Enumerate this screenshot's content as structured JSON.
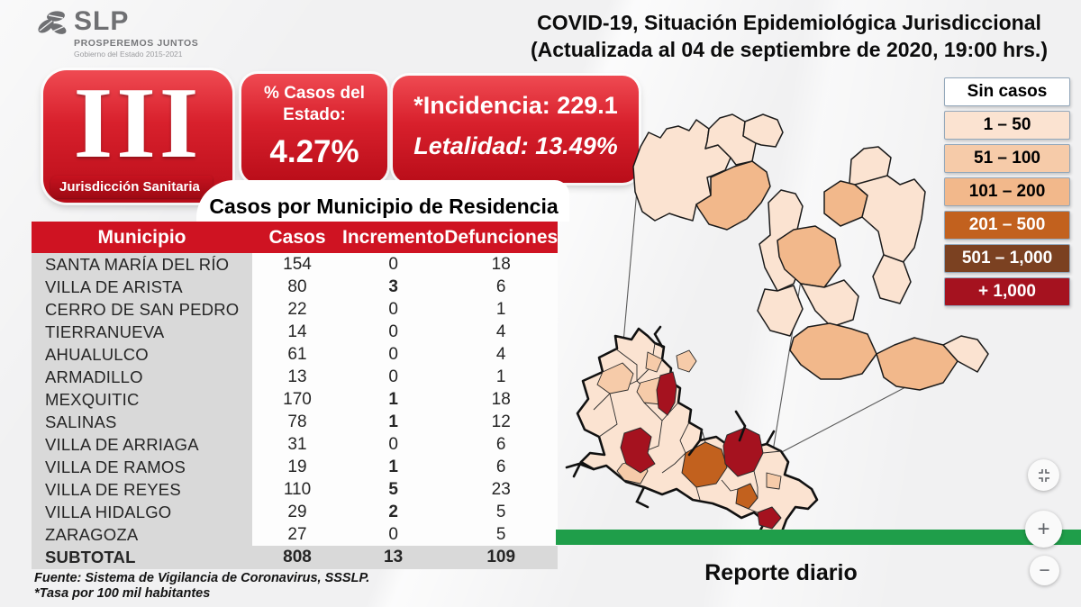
{
  "header": {
    "logo": {
      "brand": "SLP",
      "tagline": "PROSPEREMOS JUNTOS",
      "subline": "Gobierno del Estado 2015-2021"
    },
    "title_line1": "COVID-19, Situación Epidemiológica Jurisdiccional",
    "title_line2": "(Actualizada al 04 de septiembre de 2020, 19:00 hrs.)"
  },
  "badge": {
    "roman": "III",
    "label": "Jurisdicción Sanitaria"
  },
  "stats": {
    "pct_title": "% Casos del Estado:",
    "pct_value": "4.27%",
    "incidencia": "*Incidencia: 229.1",
    "letalidad": "Letalidad: 13.49%"
  },
  "table": {
    "title": "Casos por Municipio  de Residencia",
    "columns": [
      "Municipio",
      "Casos",
      "Incremento",
      "Defunciones"
    ],
    "rows": [
      {
        "municipio": "SANTA MARÍA DEL RÍO",
        "casos": "154",
        "incremento": "0",
        "defunciones": "18"
      },
      {
        "municipio": "VILLA DE ARISTA",
        "casos": "80",
        "incremento": "3",
        "defunciones": "6"
      },
      {
        "municipio": "CERRO DE SAN PEDRO",
        "casos": "22",
        "incremento": "0",
        "defunciones": "1"
      },
      {
        "municipio": "TIERRANUEVA",
        "casos": "14",
        "incremento": "0",
        "defunciones": "4"
      },
      {
        "municipio": "AHUALULCO",
        "casos": "61",
        "incremento": "0",
        "defunciones": "4"
      },
      {
        "municipio": "ARMADILLO",
        "casos": "13",
        "incremento": "0",
        "defunciones": "1"
      },
      {
        "municipio": "MEXQUITIC",
        "casos": "170",
        "incremento": "1",
        "defunciones": "18"
      },
      {
        "municipio": "SALINAS",
        "casos": "78",
        "incremento": "1",
        "defunciones": "12"
      },
      {
        "municipio": "VILLA DE ARRIAGA",
        "casos": "31",
        "incremento": "0",
        "defunciones": "6"
      },
      {
        "municipio": "VILLA DE RAMOS",
        "casos": "19",
        "incremento": "1",
        "defunciones": "6"
      },
      {
        "municipio": "VILLA DE REYES",
        "casos": "110",
        "incremento": "5",
        "defunciones": "23"
      },
      {
        "municipio": "VILLA HIDALGO",
        "casos": "29",
        "incremento": "2",
        "defunciones": "5"
      },
      {
        "municipio": "ZARAGOZA",
        "casos": "27",
        "incremento": "0",
        "defunciones": "5"
      }
    ],
    "subtotal": {
      "municipio": "SUBTOTAL",
      "casos": "808",
      "incremento": "13",
      "defunciones": "109"
    }
  },
  "footnotes": [
    "Fuente: Sistema de Vigilancia de Coronavirus, SSSLP.",
    "*Tasa por 100 mil habitantes"
  ],
  "legend": {
    "items": [
      {
        "label": "Sin casos",
        "color": "#ffffff",
        "text": "#000000"
      },
      {
        "label": "1 – 50",
        "color": "#fbe3d1",
        "text": "#000000"
      },
      {
        "label": "51 – 100",
        "color": "#f6cba9",
        "text": "#000000"
      },
      {
        "label": "101 – 200",
        "color": "#f2b88b",
        "text": "#000000"
      },
      {
        "label": "201 – 500",
        "color": "#c2611e",
        "text": "#ffffff"
      },
      {
        "label": "501 – 1,000",
        "color": "#7b4121",
        "text": "#ffffff"
      },
      {
        "label": "+ 1,000",
        "color": "#a5121f",
        "text": "#ffffff"
      }
    ]
  },
  "footer": {
    "report_label": "Reporte diario"
  },
  "controls": {
    "zoom_in": "+",
    "zoom_out": "−"
  },
  "colors": {
    "header_red": "#cf1322",
    "badge_red": "#c8101d",
    "green_bar": "#1f9e4a",
    "row_gray": "#d9d9d9"
  }
}
